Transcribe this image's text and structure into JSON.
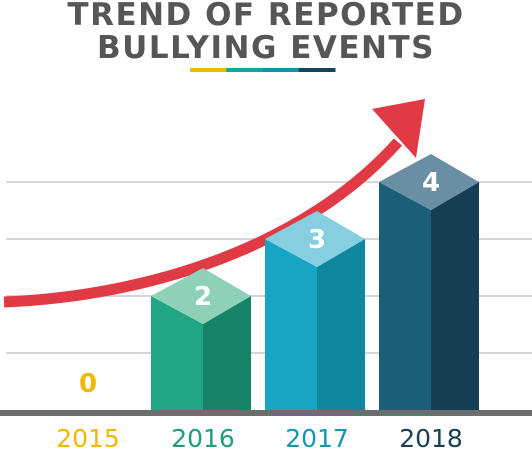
{
  "chart_data": {
    "type": "bar",
    "title_lines": [
      "TREND OF REPORTED",
      "BULLYING EVENTS"
    ],
    "categories": [
      "2015",
      "2016",
      "2017",
      "2018"
    ],
    "values": [
      0,
      2,
      3,
      4
    ],
    "value_labels": [
      "0",
      "2",
      "3",
      "4"
    ],
    "ylim": [
      0,
      4.5
    ],
    "grid": true,
    "colors": {
      "title": "#565656",
      "grid": "#c9c9c9",
      "baseline": "#6d6d6d",
      "arrow": "#e03a45",
      "underline": [
        "#f2b705",
        "#1aa39a",
        "#1a8fa8",
        "#17445a"
      ],
      "label_2015": "#f2b705",
      "bars": [
        {
          "front": "#f2b705",
          "side": "#c99500",
          "top": "#f8d257",
          "label": "#f2b705"
        },
        {
          "front": "#22a585",
          "side": "#168567",
          "top": "#8ed1b8",
          "label": "#1e9e7e"
        },
        {
          "front": "#16a6c3",
          "side": "#0e879f",
          "top": "#86cfe1",
          "label": "#1597b3"
        },
        {
          "front": "#1b5e78",
          "side": "#143f53",
          "top": "#6a8ea3",
          "label": "#1a3e52"
        }
      ]
    }
  }
}
